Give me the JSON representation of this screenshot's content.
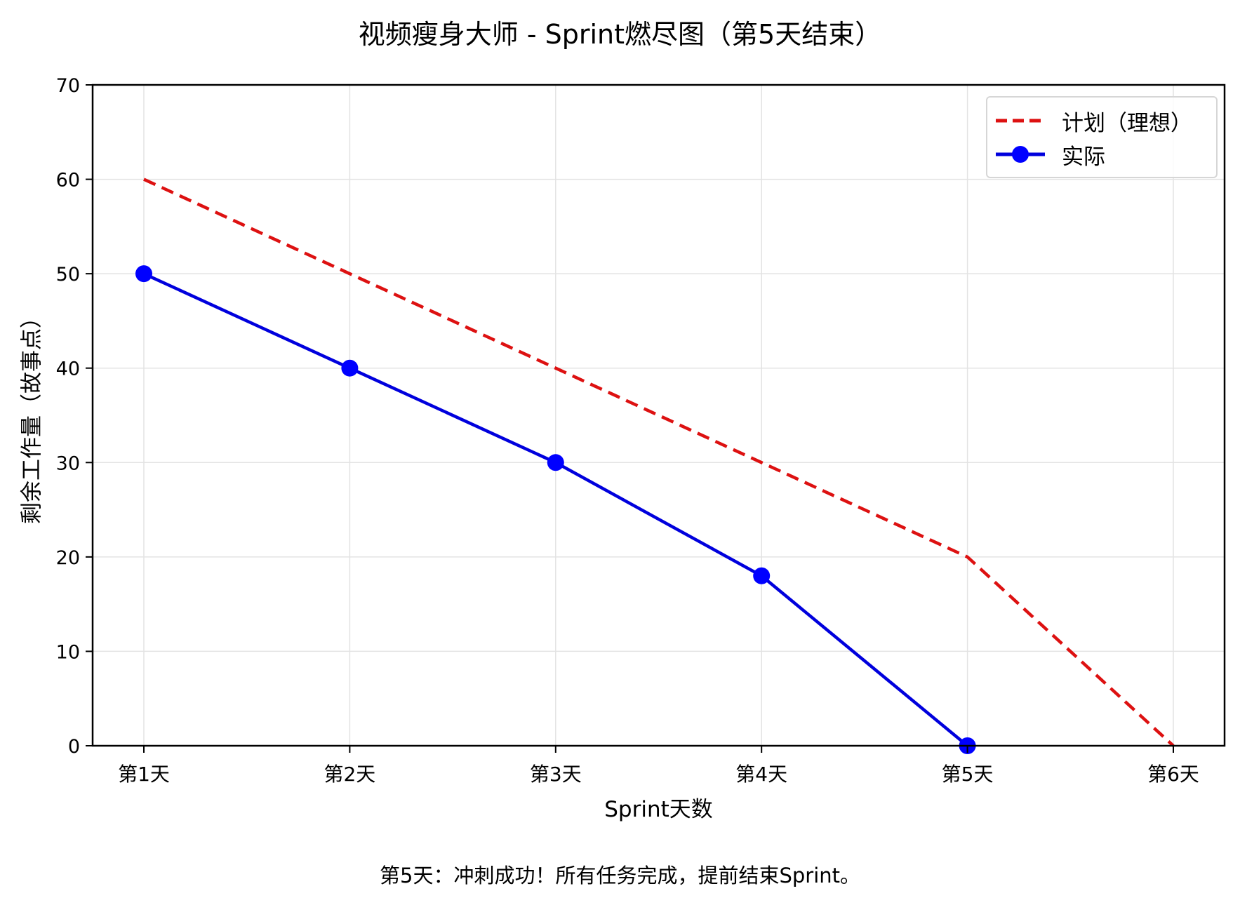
{
  "chart": {
    "title": "视频瘦身大师 - Sprint燃尽图（第5天结束）",
    "xlabel": "Sprint天数",
    "ylabel": "剩余工作量（故事点）",
    "footer_note": "第5天：冲刺成功！所有任务完成，提前结束Sprint。",
    "legend": {
      "plan_label": "计划（理想）",
      "actual_label": "实际"
    }
  },
  "chart_data": {
    "type": "line",
    "title": "视频瘦身大师 - Sprint燃尽图（第5天结束）",
    "xlabel": "Sprint天数",
    "ylabel": "剩余工作量（故事点）",
    "categories": [
      "第1天",
      "第2天",
      "第3天",
      "第4天",
      "第5天",
      "第6天"
    ],
    "series": [
      {
        "name": "计划（理想）",
        "values": [
          60,
          50,
          40,
          30,
          20,
          0
        ],
        "color": "#dd1111",
        "style": "dashed",
        "marker": "none"
      },
      {
        "name": "实际",
        "values": [
          50,
          40,
          30,
          18,
          0
        ],
        "color": "#0000dd",
        "style": "solid",
        "marker": "circle"
      }
    ],
    "ylim": [
      0,
      70
    ],
    "yticks": [
      0,
      10,
      20,
      30,
      40,
      50,
      60,
      70
    ],
    "grid": true,
    "legend_position": "upper right",
    "annotation": "第5天：冲刺成功！所有任务完成，提前结束Sprint。"
  }
}
